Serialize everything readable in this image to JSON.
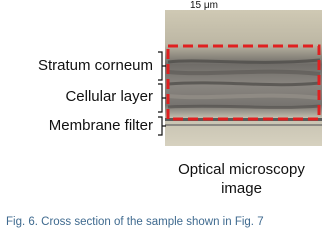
{
  "figure": {
    "scale_label": "15 μm",
    "layer_labels": [
      "Stratum corneum",
      "Cellular layer",
      "Membrane filter"
    ],
    "image_caption": [
      "Optical microscopy",
      "image"
    ],
    "caption": "Fig. 6. Cross section of the sample shown in Fig. 7"
  }
}
